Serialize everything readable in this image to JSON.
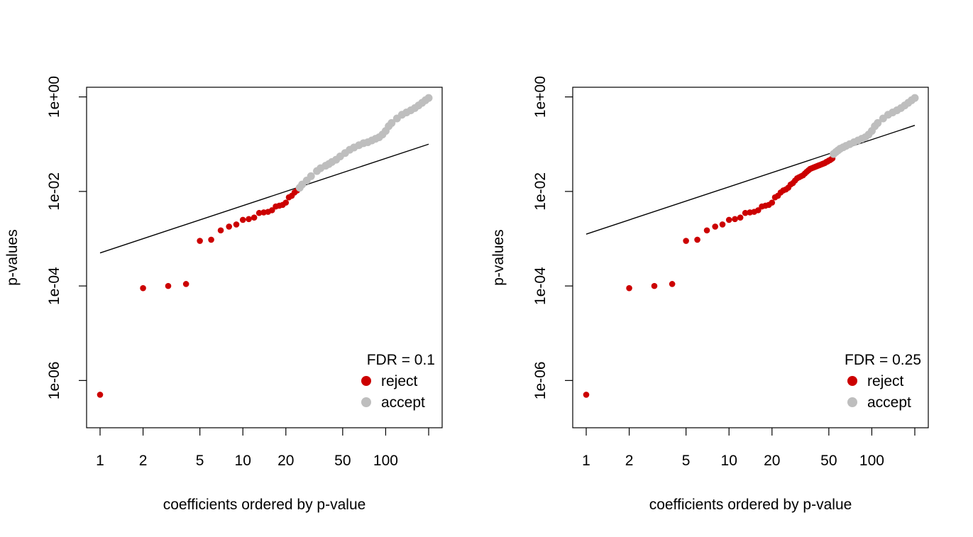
{
  "colors": {
    "reject": "#cc0000",
    "accept": "#bebebe",
    "line": "#000000",
    "frame": "#000000"
  },
  "chart_data": [
    {
      "type": "scatter",
      "xlabel": "coefficients ordered by p-value",
      "ylabel": "p-values",
      "x_scale": "log",
      "y_scale": "log",
      "xlim": [
        1,
        200
      ],
      "ylim": [
        1e-07,
        1.6
      ],
      "x_ticks": [
        {
          "v": 1,
          "label": "1"
        },
        {
          "v": 2,
          "label": "2"
        },
        {
          "v": 5,
          "label": "5"
        },
        {
          "v": 10,
          "label": "10"
        },
        {
          "v": 20,
          "label": "20"
        },
        {
          "v": 50,
          "label": "50"
        },
        {
          "v": 100,
          "label": "100"
        },
        {
          "v": 200,
          "label": ""
        }
      ],
      "y_ticks": [
        {
          "v": 1e-06,
          "label": "1e-06"
        },
        {
          "v": 0.0001,
          "label": "1e-04"
        },
        {
          "v": 0.01,
          "label": "1e-02"
        },
        {
          "v": 1,
          "label": "1e+00"
        }
      ],
      "legend": {
        "title": "FDR = 0.1",
        "position": "bottom-right",
        "entries": [
          {
            "label": "reject",
            "series": "reject"
          },
          {
            "label": "accept",
            "series": "accept"
          }
        ]
      },
      "fdr_line": {
        "q": 0.1,
        "n": 200,
        "x": [
          1,
          200
        ],
        "y": [
          0.0005,
          0.1
        ]
      },
      "series": [
        {
          "name": "reject",
          "x": [
            1,
            2,
            3,
            4,
            5,
            6,
            7,
            8,
            9,
            10,
            11,
            12,
            13,
            14,
            15,
            16,
            17,
            18,
            19,
            20,
            21,
            22,
            23,
            24
          ],
          "y": [
            5e-07,
            9e-05,
            0.0001,
            0.00011,
            0.0009,
            0.00095,
            0.0015,
            0.0018,
            0.002,
            0.0025,
            0.0026,
            0.0028,
            0.0035,
            0.0036,
            0.0037,
            0.004,
            0.0048,
            0.005,
            0.0052,
            0.0058,
            0.0075,
            0.0081,
            0.0095,
            0.0105
          ]
        },
        {
          "name": "accept",
          "x": [
            25,
            26,
            28,
            30,
            33,
            35,
            38,
            40,
            42,
            45,
            48,
            52,
            56,
            60,
            65,
            70,
            75,
            80,
            85,
            90,
            95,
            100,
            105,
            110,
            120,
            130,
            140,
            150,
            160,
            170,
            180,
            190,
            200
          ],
          "y": [
            0.012,
            0.014,
            0.017,
            0.021,
            0.027,
            0.031,
            0.035,
            0.038,
            0.042,
            0.047,
            0.055,
            0.065,
            0.076,
            0.085,
            0.095,
            0.105,
            0.11,
            0.12,
            0.13,
            0.14,
            0.16,
            0.19,
            0.24,
            0.28,
            0.35,
            0.42,
            0.47,
            0.52,
            0.58,
            0.66,
            0.75,
            0.85,
            0.95
          ]
        }
      ]
    },
    {
      "type": "scatter",
      "xlabel": "coefficients ordered by p-value",
      "ylabel": "p-values",
      "x_scale": "log",
      "y_scale": "log",
      "xlim": [
        1,
        200
      ],
      "ylim": [
        1e-07,
        1.6
      ],
      "x_ticks": [
        {
          "v": 1,
          "label": "1"
        },
        {
          "v": 2,
          "label": "2"
        },
        {
          "v": 5,
          "label": "5"
        },
        {
          "v": 10,
          "label": "10"
        },
        {
          "v": 20,
          "label": "20"
        },
        {
          "v": 50,
          "label": "50"
        },
        {
          "v": 100,
          "label": "100"
        },
        {
          "v": 200,
          "label": ""
        }
      ],
      "y_ticks": [
        {
          "v": 1e-06,
          "label": "1e-06"
        },
        {
          "v": 0.0001,
          "label": "1e-04"
        },
        {
          "v": 0.01,
          "label": "1e-02"
        },
        {
          "v": 1,
          "label": "1e+00"
        }
      ],
      "legend": {
        "title": "FDR = 0.25",
        "position": "bottom-right",
        "entries": [
          {
            "label": "reject",
            "series": "reject"
          },
          {
            "label": "accept",
            "series": "accept"
          }
        ]
      },
      "fdr_line": {
        "q": 0.25,
        "n": 200,
        "x": [
          1,
          200
        ],
        "y": [
          0.00125,
          0.25
        ]
      },
      "series": [
        {
          "name": "reject",
          "x": [
            1,
            2,
            3,
            4,
            5,
            6,
            7,
            8,
            9,
            10,
            11,
            12,
            13,
            14,
            15,
            16,
            17,
            18,
            19,
            20,
            21,
            22,
            23,
            24,
            25,
            26,
            27,
            28,
            29,
            30,
            31,
            32,
            33,
            34,
            35,
            36,
            37,
            38,
            39,
            40,
            41,
            42,
            43,
            44,
            45,
            46,
            47,
            48,
            49,
            50,
            51,
            52,
            53
          ],
          "y": [
            5e-07,
            9e-05,
            0.0001,
            0.00011,
            0.0009,
            0.00095,
            0.0015,
            0.0018,
            0.002,
            0.0025,
            0.0026,
            0.0028,
            0.0035,
            0.0036,
            0.0037,
            0.004,
            0.0048,
            0.005,
            0.0052,
            0.0058,
            0.0075,
            0.0081,
            0.0095,
            0.0105,
            0.011,
            0.012,
            0.014,
            0.015,
            0.017,
            0.019,
            0.02,
            0.021,
            0.022,
            0.024,
            0.026,
            0.028,
            0.03,
            0.031,
            0.032,
            0.033,
            0.034,
            0.035,
            0.036,
            0.037,
            0.038,
            0.039,
            0.04,
            0.042,
            0.043,
            0.045,
            0.046,
            0.048,
            0.05
          ]
        },
        {
          "name": "accept",
          "x": [
            54,
            56,
            58,
            60,
            63,
            66,
            70,
            75,
            80,
            85,
            90,
            95,
            100,
            105,
            110,
            120,
            130,
            140,
            150,
            160,
            170,
            180,
            190,
            200
          ],
          "y": [
            0.062,
            0.068,
            0.074,
            0.08,
            0.086,
            0.092,
            0.1,
            0.11,
            0.12,
            0.13,
            0.14,
            0.16,
            0.19,
            0.24,
            0.28,
            0.35,
            0.42,
            0.47,
            0.52,
            0.58,
            0.66,
            0.75,
            0.85,
            0.95
          ]
        }
      ]
    }
  ]
}
